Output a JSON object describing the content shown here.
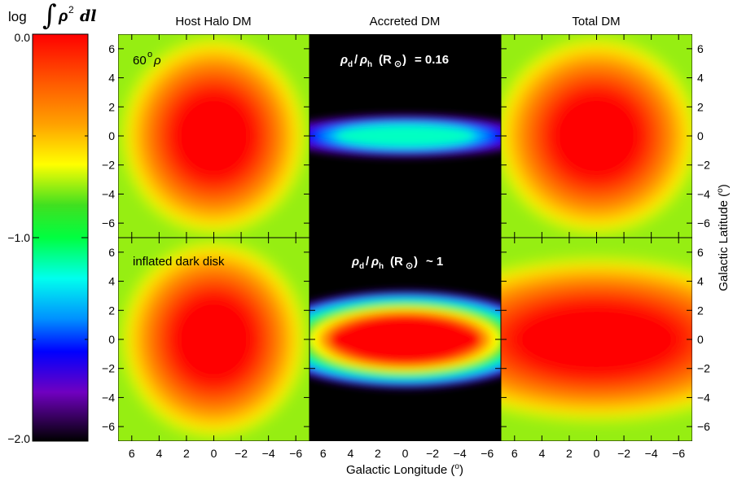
{
  "chart_data": {
    "type": "heatmap",
    "colorbar": {
      "title_prefix": "log",
      "title_integral": "∫",
      "title_rho": "ρ",
      "title_sup": "2",
      "title_dl": "dl",
      "ticks": [
        {
          "value": 0.0,
          "label": "0.0"
        },
        {
          "value": -1.0,
          "label": "−1.0"
        },
        {
          "value": -2.0,
          "label": "−2.0"
        }
      ],
      "range": [
        -2.0,
        0.0
      ],
      "colormap": "rainbow"
    },
    "columns": [
      {
        "title": "Host Halo DM"
      },
      {
        "title": "Accreted DM"
      },
      {
        "title": "Total DM"
      }
    ],
    "rows": [
      {
        "label": "60°ρ",
        "ratio_label": "ρ_d/ρ_h (R⊙) = 0.16"
      },
      {
        "label": "inflated dark disk",
        "ratio_label": "ρ_d/ρ_h (R⊙) ~ 1"
      }
    ],
    "annotations": {
      "row1_left": "60",
      "row1_left_sup": "o",
      "row1_left_rho": "ρ",
      "row2_left": "inflated dark disk",
      "row1_mid_rho_d": "ρ",
      "row1_mid_sub_d": "d",
      "row1_mid_slash": "/",
      "row1_mid_rho_h": "ρ",
      "row1_mid_sub_h": "h",
      "row1_mid_rsun": "(R",
      "row1_mid_sun": "⊙",
      "row1_mid_close": ")",
      "row1_mid_value": "= 0.16",
      "row2_mid_value": "~ 1"
    },
    "x_axis": {
      "label_prefix": "Galactic Longitude (",
      "label_deg": "o",
      "label_suffix": ")",
      "range": [
        7,
        -7
      ],
      "ticks": [
        {
          "value": 6,
          "label": "6"
        },
        {
          "value": 4,
          "label": "4"
        },
        {
          "value": 2,
          "label": "2"
        },
        {
          "value": 0,
          "label": "0"
        },
        {
          "value": -2,
          "label": "−2"
        },
        {
          "value": -4,
          "label": "−4"
        },
        {
          "value": -6,
          "label": "−6"
        }
      ]
    },
    "y_axis": {
      "label_prefix": "Galactic Latitude (",
      "label_deg": "o",
      "label_suffix": ")",
      "range": [
        -7,
        7
      ],
      "ticks": [
        {
          "value": 6,
          "label": "6"
        },
        {
          "value": 4,
          "label": "4"
        },
        {
          "value": 2,
          "label": "2"
        },
        {
          "value": 0,
          "label": "0"
        },
        {
          "value": -2,
          "label": "−2"
        },
        {
          "value": -4,
          "label": "−4"
        },
        {
          "value": -6,
          "label": "−6"
        }
      ]
    },
    "panels": [
      {
        "row": 0,
        "col": 0,
        "peak_log": 0.0,
        "core_halfwidth_l": 3.0,
        "core_halfwidth_b": 3.0,
        "background_log": -0.75
      },
      {
        "row": 0,
        "col": 1,
        "peak_log": -1.15,
        "core_halfwidth_l": 5.0,
        "core_halfwidth_b": 0.7,
        "background_log": -2.0
      },
      {
        "row": 0,
        "col": 2,
        "peak_log": 0.0,
        "core_halfwidth_l": 3.3,
        "core_halfwidth_b": 3.0,
        "background_log": -0.75
      },
      {
        "row": 1,
        "col": 0,
        "peak_log": 0.0,
        "core_halfwidth_l": 3.0,
        "core_halfwidth_b": 3.0,
        "background_log": -0.75
      },
      {
        "row": 1,
        "col": 1,
        "peak_log": 0.0,
        "core_halfwidth_l": 5.5,
        "core_halfwidth_b": 1.3,
        "background_log": -2.0
      },
      {
        "row": 1,
        "col": 2,
        "peak_log": 0.0,
        "core_halfwidth_l": 6.0,
        "core_halfwidth_b": 2.5,
        "background_log": -0.75
      }
    ]
  }
}
